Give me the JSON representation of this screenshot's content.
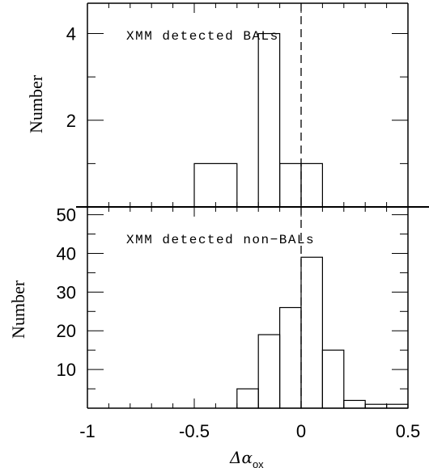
{
  "chart_data": [
    {
      "type": "bar",
      "panel": "top",
      "annotation": "XMM detected BALs",
      "ylabel": "Number",
      "xlim": [
        -1,
        0.5
      ],
      "ylim": [
        0,
        4.7
      ],
      "yticks": [
        2,
        4
      ],
      "ytick_labels": [
        "2",
        "4"
      ],
      "bins": [
        {
          "x0": -0.5,
          "x1": -0.3,
          "value": 1
        },
        {
          "x0": -0.3,
          "x1": -0.2,
          "value": 0
        },
        {
          "x0": -0.2,
          "x1": -0.1,
          "value": 4
        },
        {
          "x0": -0.1,
          "x1": 0.0,
          "value": 1
        },
        {
          "x0": 0.0,
          "x1": 0.1,
          "value": 1
        }
      ],
      "reference_line_x": 0
    },
    {
      "type": "bar",
      "panel": "bottom",
      "annotation": "XMM detected non−BALs",
      "ylabel": "Number",
      "xlabel_symbol": "Δα",
      "xlabel_subscript": "ox",
      "xlim": [
        -1,
        0.5
      ],
      "ylim": [
        0,
        52
      ],
      "yticks": [
        10,
        20,
        30,
        40,
        50
      ],
      "ytick_labels": [
        "10",
        "20",
        "30",
        "40",
        "50"
      ],
      "xticks": [
        -1,
        -0.5,
        0,
        0.5
      ],
      "xtick_labels": [
        "-1",
        "-0.5",
        "0",
        "0.5"
      ],
      "bins": [
        {
          "x0": -0.3,
          "x1": -0.2,
          "value": 5
        },
        {
          "x0": -0.2,
          "x1": -0.1,
          "value": 19
        },
        {
          "x0": -0.1,
          "x1": 0.0,
          "value": 26
        },
        {
          "x0": 0.0,
          "x1": 0.1,
          "value": 39
        },
        {
          "x0": 0.1,
          "x1": 0.2,
          "value": 15
        },
        {
          "x0": 0.2,
          "x1": 0.3,
          "value": 2
        },
        {
          "x0": 0.3,
          "x1": 0.4,
          "value": 1
        },
        {
          "x0": 0.4,
          "x1": 0.5,
          "value": 1
        }
      ],
      "reference_line_x": 0
    }
  ]
}
